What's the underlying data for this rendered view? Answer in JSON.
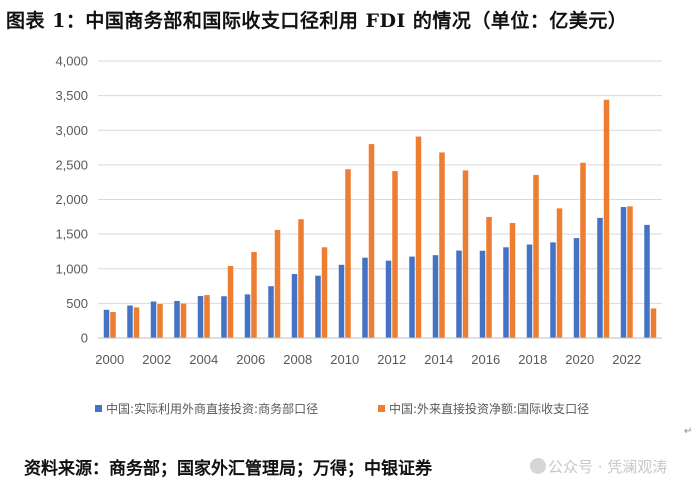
{
  "header": {
    "title": "图表 1：中国商务部和国际收支口径利用 FDI 的情况（单位：亿美元）"
  },
  "footer": {
    "source": "资料来源：商务部；国家外汇管理局；万得；中银证券",
    "watermark": "公众号 · 凭澜观涛"
  },
  "colors": {
    "series1": "#4472C4",
    "series2": "#ED7D31",
    "grid": "#D9D9D9",
    "axis": "#BFBFBF"
  },
  "chart_data": {
    "type": "bar",
    "categories": [
      "2000",
      "2001",
      "2002",
      "2003",
      "2004",
      "2005",
      "2006",
      "2007",
      "2008",
      "2009",
      "2010",
      "2011",
      "2012",
      "2013",
      "2014",
      "2015",
      "2016",
      "2017",
      "2018",
      "2019",
      "2020",
      "2021",
      "2022",
      "2023"
    ],
    "x_tick_labels": [
      "2000",
      "2002",
      "2004",
      "2006",
      "2008",
      "2010",
      "2012",
      "2014",
      "2016",
      "2018",
      "2020",
      "2022"
    ],
    "y_ticks": [
      "0",
      "500",
      "1,000",
      "1,500",
      "2,000",
      "2,500",
      "3,000",
      "3,500",
      "4,000"
    ],
    "ylim": [
      0,
      4000
    ],
    "grid": true,
    "legend_position": "bottom",
    "series": [
      {
        "name": "中国:实际利用外商直接投资:商务部口径",
        "values": [
          407,
          469,
          527,
          535,
          606,
          603,
          630,
          748,
          924,
          900,
          1057,
          1160,
          1117,
          1176,
          1196,
          1263,
          1260,
          1310,
          1350,
          1381,
          1443,
          1735,
          1891,
          1633
        ]
      },
      {
        "name": "中国:外来直接投资净额:国际收支口径",
        "values": [
          375,
          442,
          491,
          496,
          620,
          1040,
          1241,
          1561,
          1715,
          1310,
          2437,
          2800,
          2410,
          2909,
          2680,
          2420,
          1748,
          1661,
          2354,
          1872,
          2531,
          3440,
          1901,
          427
        ]
      }
    ]
  }
}
